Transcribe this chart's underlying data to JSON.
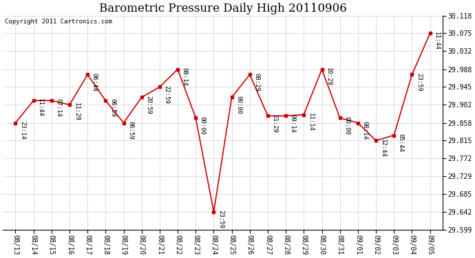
{
  "title": "Barometric Pressure Daily High 20110906",
  "copyright": "Copyright 2011 Cartronics.com",
  "background_color": "#ffffff",
  "line_color": "#cc0000",
  "marker_color": "#cc0000",
  "grid_color": "#bbbbbb",
  "x_labels": [
    "08/13",
    "08/14",
    "08/15",
    "08/16",
    "08/17",
    "08/18",
    "08/19",
    "08/20",
    "08/21",
    "08/22",
    "08/23",
    "08/24",
    "08/25",
    "08/26",
    "08/27",
    "08/28",
    "08/29",
    "08/30",
    "08/31",
    "09/01",
    "09/02",
    "09/03",
    "09/04",
    "09/05"
  ],
  "y_values": [
    29.858,
    29.912,
    29.912,
    29.902,
    29.975,
    29.912,
    29.858,
    29.92,
    29.945,
    29.988,
    29.87,
    29.642,
    29.92,
    29.975,
    29.875,
    29.875,
    29.878,
    29.988,
    29.87,
    29.858,
    29.815,
    29.828,
    29.975,
    30.075
  ],
  "annotations": [
    "23:14",
    "11:44",
    "07:14",
    "11:29",
    "06:44",
    "06:59",
    "06:59",
    "20:59",
    "22:59",
    "08:14",
    "00:00",
    "23:59",
    "00:00",
    "08:29",
    "21:29",
    "09:14",
    "11:14",
    "10:29",
    "00:00",
    "08:14",
    "12:44",
    "05:44",
    "23:59",
    "11:44"
  ],
  "ylim_min": 29.599,
  "ylim_max": 30.118,
  "yticks": [
    29.599,
    29.642,
    29.685,
    29.729,
    29.772,
    29.815,
    29.858,
    29.902,
    29.945,
    29.988,
    30.032,
    30.075,
    30.118
  ],
  "title_fontsize": 12,
  "annotation_fontsize": 6.5,
  "copyright_fontsize": 6.5,
  "tick_fontsize": 7,
  "figwidth": 6.9,
  "figheight": 3.75,
  "dpi": 100
}
